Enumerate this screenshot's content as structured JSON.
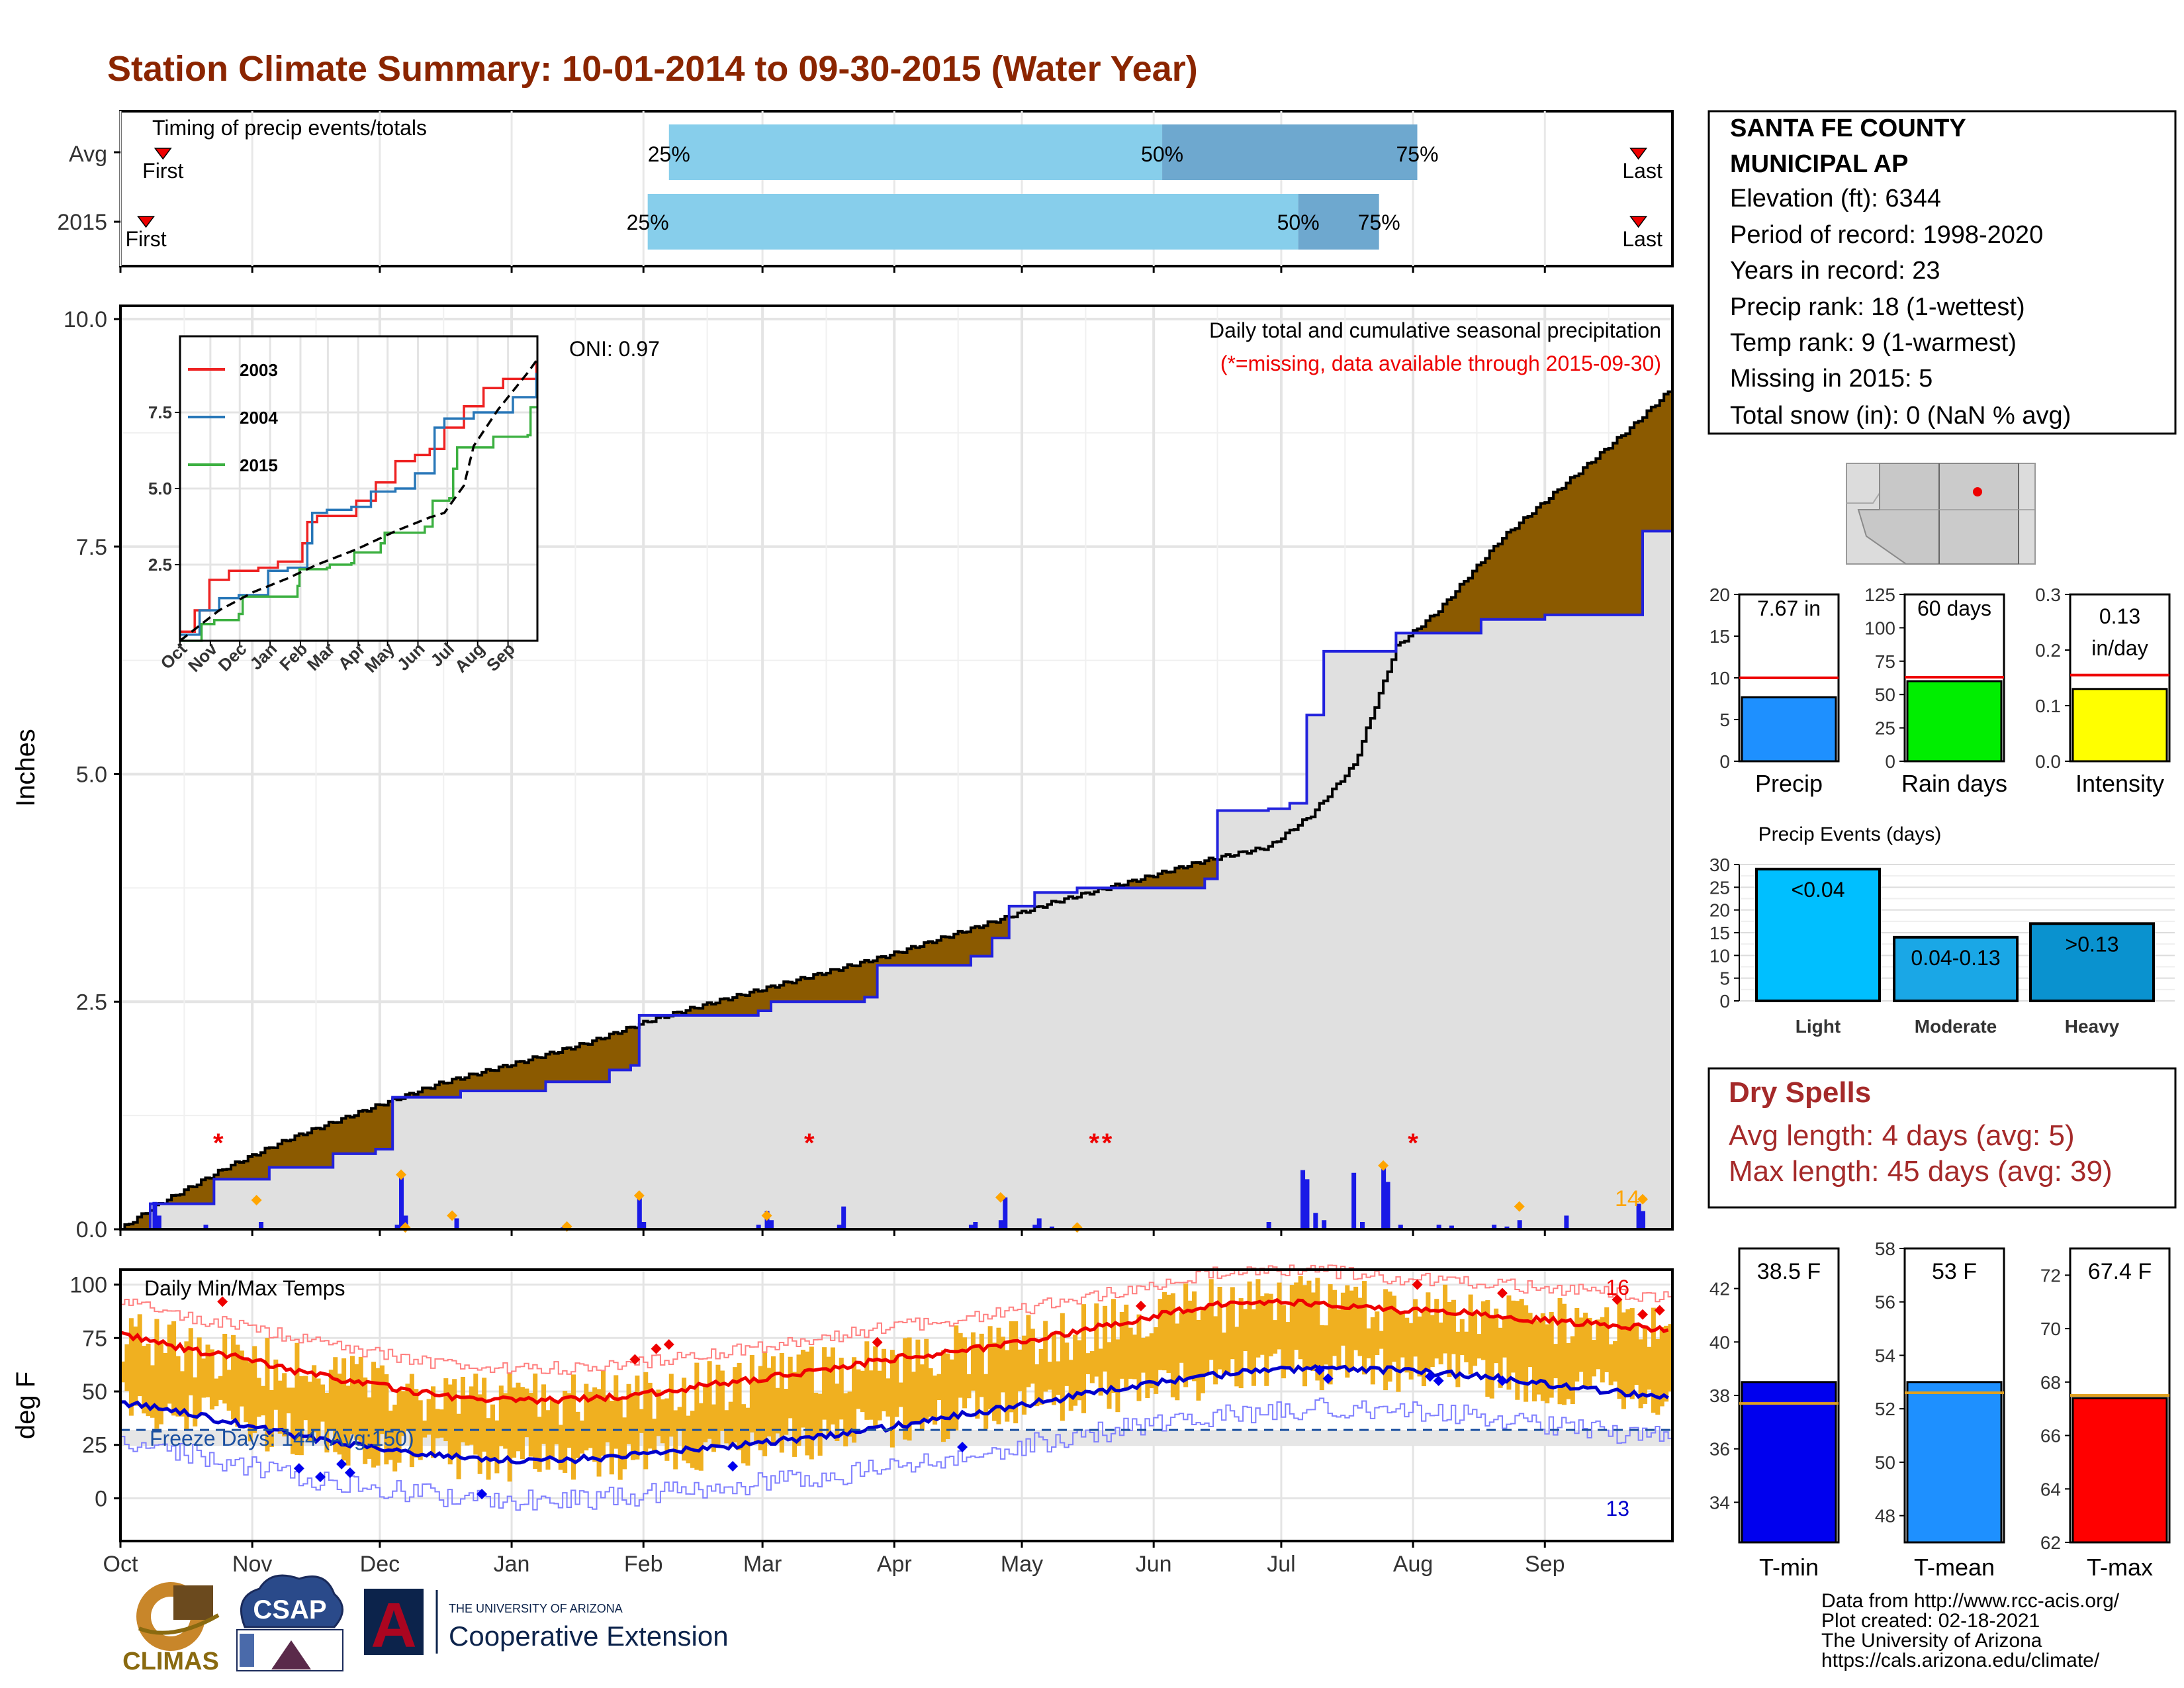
{
  "page_title": "Station Climate Summary: 10-01-2014 to 09-30-2015 (Water Year)",
  "colors": {
    "title": "#8b2500",
    "bar_q1": "#87ceeb",
    "bar_q2": "#6ea8cf",
    "brown": "#8b5a00",
    "cum_2015": "#2222dd",
    "avg_fill": "#e0e0e0",
    "tmax_line": "#ee0000",
    "tmin_line": "#0000cc",
    "temp_bar": "#f0b020",
    "precip_bar": "#1e90ff",
    "raindays_bar": "#00ee00",
    "intensity_bar": "#ffff00",
    "events_light": "#00bfff",
    "events_moderate": "#1aa7e6",
    "events_heavy": "#0a92cf",
    "dry_spell_text": "#a52a2a",
    "tmin_bar": "#0000ee",
    "tmean_bar": "#1e90ff",
    "tmax_bar": "#ff0000"
  },
  "timing": {
    "label": "Timing of precip events/totals",
    "rows": [
      {
        "name": "Avg",
        "first_label": "First",
        "last_label": "Last",
        "q25": "25%",
        "q50": "50%",
        "q75": "75%",
        "q25_day": 129,
        "q50_day": 245,
        "q75_day": 305
      },
      {
        "name": "2015",
        "first_label": "First",
        "last_label": "Last",
        "q25": "25%",
        "q50": "50%",
        "q75": "75%",
        "q25_day": 124,
        "q50_day": 277,
        "q75_day": 296
      }
    ],
    "first_day": [
      10,
      6
    ],
    "last_day": [
      357,
      357
    ]
  },
  "precip_panel": {
    "ylabel": "Inches",
    "yticks": [
      "0.0",
      "2.5",
      "5.0",
      "7.5",
      "10.0"
    ],
    "ylim": [
      0,
      10.0
    ],
    "oni": "ONI: 0.97",
    "caption": "Daily total and cumulative seasonal precipitation",
    "missing_note": "(*=missing, data available through 2015-09-30)",
    "missing_marker": "*",
    "snow_count": "14",
    "missing_days": [
      23,
      162,
      229,
      232,
      304
    ],
    "avg_cumulative": [
      [
        0,
        0
      ],
      [
        8,
        0.25
      ],
      [
        25,
        0.68
      ],
      [
        40,
        1.0
      ],
      [
        60,
        1.35
      ],
      [
        75,
        1.6
      ],
      [
        95,
        1.85
      ],
      [
        110,
        2.05
      ],
      [
        125,
        2.3
      ],
      [
        140,
        2.5
      ],
      [
        160,
        2.75
      ],
      [
        180,
        3.0
      ],
      [
        200,
        3.3
      ],
      [
        220,
        3.6
      ],
      [
        240,
        3.85
      ],
      [
        255,
        4.05
      ],
      [
        270,
        4.2
      ],
      [
        280,
        4.55
      ],
      [
        290,
        5.1
      ],
      [
        300,
        6.4
      ],
      [
        310,
        6.8
      ],
      [
        325,
        7.6
      ],
      [
        340,
        8.2
      ],
      [
        355,
        8.8
      ],
      [
        364,
        9.2
      ]
    ],
    "cum_2015": [
      [
        0,
        0
      ],
      [
        7,
        0.28
      ],
      [
        22,
        0.55
      ],
      [
        35,
        0.68
      ],
      [
        50,
        0.83
      ],
      [
        60,
        0.88
      ],
      [
        64,
        1.45
      ],
      [
        80,
        1.52
      ],
      [
        100,
        1.62
      ],
      [
        115,
        1.75
      ],
      [
        120,
        1.8
      ],
      [
        122,
        2.35
      ],
      [
        150,
        2.4
      ],
      [
        153,
        2.5
      ],
      [
        175,
        2.55
      ],
      [
        178,
        2.9
      ],
      [
        200,
        3.0
      ],
      [
        205,
        3.2
      ],
      [
        209,
        3.55
      ],
      [
        215,
        3.7
      ],
      [
        225,
        3.75
      ],
      [
        250,
        3.75
      ],
      [
        255,
        3.85
      ],
      [
        258,
        4.6
      ],
      [
        270,
        4.62
      ],
      [
        275,
        4.68
      ],
      [
        279,
        5.65
      ],
      [
        283,
        6.35
      ],
      [
        300,
        6.55
      ],
      [
        320,
        6.7
      ],
      [
        335,
        6.75
      ],
      [
        355,
        6.75
      ],
      [
        358,
        7.67
      ],
      [
        364,
        7.67
      ]
    ],
    "daily_bars": [
      [
        8,
        0.3
      ],
      [
        9,
        0.15
      ],
      [
        20,
        0.05
      ],
      [
        33,
        0.08
      ],
      [
        65,
        0.05
      ],
      [
        66,
        0.58
      ],
      [
        67,
        0.15
      ],
      [
        79,
        0.12
      ],
      [
        104,
        0.02
      ],
      [
        122,
        0.35
      ],
      [
        123,
        0.08
      ],
      [
        150,
        0.05
      ],
      [
        152,
        0.2
      ],
      [
        153,
        0.1
      ],
      [
        169,
        0.05
      ],
      [
        170,
        0.25
      ],
      [
        200,
        0.05
      ],
      [
        201,
        0.08
      ],
      [
        207,
        0.1
      ],
      [
        208,
        0.35
      ],
      [
        215,
        0.05
      ],
      [
        216,
        0.12
      ],
      [
        219,
        0.03
      ],
      [
        270,
        0.08
      ],
      [
        278,
        0.65
      ],
      [
        279,
        0.55
      ],
      [
        281,
        0.18
      ],
      [
        283,
        0.1
      ],
      [
        290,
        0.62
      ],
      [
        292,
        0.08
      ],
      [
        297,
        0.68
      ],
      [
        298,
        0.52
      ],
      [
        301,
        0.05
      ],
      [
        310,
        0.05
      ],
      [
        313,
        0.04
      ],
      [
        323,
        0.05
      ],
      [
        326,
        0.03
      ],
      [
        329,
        0.1
      ],
      [
        340,
        0.15
      ],
      [
        357,
        0.28
      ],
      [
        358,
        0.2
      ]
    ],
    "snow_markers": [
      [
        32,
        0.32
      ],
      [
        66,
        0.6
      ],
      [
        67,
        0.02
      ],
      [
        78,
        0.15
      ],
      [
        105,
        0.03
      ],
      [
        122,
        0.37
      ],
      [
        152,
        0.15
      ],
      [
        207,
        0.35
      ],
      [
        225,
        0.02
      ],
      [
        297,
        0.7
      ],
      [
        329,
        0.25
      ],
      [
        358,
        0.33
      ]
    ]
  },
  "inset": {
    "yticks": [
      "2.5",
      "5.0",
      "7.5"
    ],
    "xticks": [
      "Oct",
      "Nov",
      "Dec",
      "Jan",
      "Feb",
      "Mar",
      "Apr",
      "May",
      "Jun",
      "Jul",
      "Aug",
      "Sep"
    ],
    "legend": [
      "2003",
      "2004",
      "2015"
    ],
    "series_colors": [
      "#ee2222",
      "#2877b8",
      "#3cb041"
    ],
    "ylim": [
      0,
      10
    ],
    "series": [
      {
        "name": "2003",
        "points": [
          [
            0,
            0.3
          ],
          [
            15,
            1.0
          ],
          [
            30,
            2.0
          ],
          [
            50,
            2.3
          ],
          [
            80,
            2.4
          ],
          [
            100,
            2.6
          ],
          [
            125,
            3.2
          ],
          [
            130,
            3.9
          ],
          [
            140,
            4.1
          ],
          [
            170,
            4.1
          ],
          [
            180,
            4.6
          ],
          [
            200,
            5.2
          ],
          [
            220,
            5.9
          ],
          [
            240,
            6.1
          ],
          [
            255,
            6.3
          ],
          [
            270,
            7.0
          ],
          [
            290,
            7.7
          ],
          [
            310,
            8.3
          ],
          [
            330,
            8.6
          ],
          [
            364,
            9.2
          ]
        ]
      },
      {
        "name": "2004",
        "points": [
          [
            0,
            0.2
          ],
          [
            20,
            1.0
          ],
          [
            40,
            1.4
          ],
          [
            60,
            1.5
          ],
          [
            90,
            2.3
          ],
          [
            110,
            2.4
          ],
          [
            130,
            3.2
          ],
          [
            135,
            4.2
          ],
          [
            150,
            4.3
          ],
          [
            175,
            4.4
          ],
          [
            195,
            4.9
          ],
          [
            220,
            5.0
          ],
          [
            240,
            5.5
          ],
          [
            260,
            7.0
          ],
          [
            270,
            7.3
          ],
          [
            300,
            7.5
          ],
          [
            340,
            8.0
          ],
          [
            364,
            8.8
          ]
        ]
      },
      {
        "name": "2015",
        "points": [
          [
            0,
            0
          ],
          [
            22,
            0.55
          ],
          [
            35,
            0.68
          ],
          [
            60,
            0.88
          ],
          [
            64,
            1.45
          ],
          [
            120,
            1.8
          ],
          [
            122,
            2.35
          ],
          [
            150,
            2.4
          ],
          [
            153,
            2.5
          ],
          [
            175,
            2.55
          ],
          [
            178,
            2.9
          ],
          [
            205,
            3.2
          ],
          [
            209,
            3.55
          ],
          [
            250,
            3.75
          ],
          [
            258,
            4.6
          ],
          [
            275,
            4.68
          ],
          [
            279,
            5.65
          ],
          [
            283,
            6.35
          ],
          [
            320,
            6.7
          ],
          [
            355,
            6.75
          ],
          [
            358,
            7.67
          ],
          [
            364,
            7.67
          ]
        ]
      },
      {
        "name": "avg",
        "points": [
          [
            0,
            0
          ],
          [
            40,
            1.0
          ],
          [
            75,
            1.6
          ],
          [
            110,
            2.05
          ],
          [
            140,
            2.5
          ],
          [
            180,
            3.0
          ],
          [
            220,
            3.6
          ],
          [
            255,
            4.05
          ],
          [
            270,
            4.2
          ],
          [
            290,
            5.1
          ],
          [
            300,
            6.4
          ],
          [
            325,
            7.6
          ],
          [
            355,
            8.8
          ],
          [
            364,
            9.2
          ]
        ]
      }
    ]
  },
  "temp_panel": {
    "ylabel": "deg F",
    "yticks": [
      "0",
      "25",
      "50",
      "75",
      "100"
    ],
    "ylim": [
      -20,
      107
    ],
    "title": "Daily Min/Max Temps",
    "freeze_label": "Freeze Days: 144 (Avg:150)",
    "freeze_line": 32,
    "record_high_count": "16",
    "record_low_count": "13",
    "months": [
      "Oct",
      "Nov",
      "Dec",
      "Jan",
      "Feb",
      "Mar",
      "Apr",
      "May",
      "Jun",
      "Jul",
      "Aug",
      "Sep"
    ],
    "avg_tmax": [
      [
        0,
        77
      ],
      [
        15,
        70
      ],
      [
        30,
        65
      ],
      [
        45,
        58
      ],
      [
        60,
        53
      ],
      [
        75,
        48
      ],
      [
        90,
        46
      ],
      [
        105,
        46
      ],
      [
        120,
        48
      ],
      [
        135,
        52
      ],
      [
        150,
        56
      ],
      [
        165,
        60
      ],
      [
        180,
        65
      ],
      [
        195,
        68
      ],
      [
        210,
        73
      ],
      [
        225,
        78
      ],
      [
        240,
        84
      ],
      [
        255,
        90
      ],
      [
        270,
        92
      ],
      [
        285,
        91
      ],
      [
        300,
        88
      ],
      [
        315,
        87
      ],
      [
        330,
        84
      ],
      [
        345,
        82
      ],
      [
        364,
        79
      ]
    ],
    "avg_tmin": [
      [
        0,
        45
      ],
      [
        15,
        40
      ],
      [
        30,
        34
      ],
      [
        45,
        28
      ],
      [
        60,
        24
      ],
      [
        75,
        20
      ],
      [
        90,
        18
      ],
      [
        105,
        18
      ],
      [
        120,
        20
      ],
      [
        135,
        23
      ],
      [
        150,
        26
      ],
      [
        165,
        29
      ],
      [
        180,
        33
      ],
      [
        195,
        38
      ],
      [
        210,
        43
      ],
      [
        225,
        48
      ],
      [
        240,
        53
      ],
      [
        255,
        57
      ],
      [
        270,
        60
      ],
      [
        285,
        61
      ],
      [
        300,
        60
      ],
      [
        315,
        58
      ],
      [
        330,
        55
      ],
      [
        345,
        51
      ],
      [
        364,
        47
      ]
    ]
  },
  "station": {
    "name_line1": "SANTA FE COUNTY",
    "name_line2": "MUNICIPAL AP",
    "elevation": "Elevation (ft): 6344",
    "period": "Period of record: 1998-2020",
    "years": "Years in record: 23",
    "precip_rank": "Precip rank: 18 (1-wettest)",
    "temp_rank": "Temp rank: 9 (1-warmest)",
    "missing": "Missing in 2015: 5",
    "snow": "Total snow (in): 0 (NaN % avg)"
  },
  "summary_bars": [
    {
      "label": "Precip",
      "value_text": "7.67 in",
      "value": 7.67,
      "avg": 10.0,
      "yticks": [
        "0",
        "5",
        "10",
        "15",
        "20"
      ],
      "ymax": 20,
      "color_key": "precip_bar"
    },
    {
      "label": "Rain days",
      "value_text": "60 days",
      "value": 60,
      "avg": 63,
      "yticks": [
        "0",
        "25",
        "50",
        "75",
        "100",
        "125"
      ],
      "ymax": 125,
      "color_key": "raindays_bar"
    },
    {
      "label": "Intensity",
      "value_text": "0.13 in/day",
      "value_line1": "0.13",
      "value_line2": "in/day",
      "value": 0.13,
      "avg": 0.155,
      "yticks": [
        "0.0",
        "0.1",
        "0.2",
        "0.3"
      ],
      "ymax": 0.3,
      "color_key": "intensity_bar"
    }
  ],
  "events": {
    "title": "Precip Events (days)",
    "yticks": [
      "0",
      "5",
      "10",
      "15",
      "20",
      "25",
      "30"
    ],
    "ymax": 30,
    "bars": [
      {
        "category": "Light",
        "label": "<0.04",
        "value": 29,
        "color_key": "events_light"
      },
      {
        "category": "Moderate",
        "label": "0.04-0.13",
        "value": 14,
        "color_key": "events_moderate"
      },
      {
        "category": "Heavy",
        "label": ">0.13",
        "value": 17,
        "color_key": "events_heavy"
      }
    ]
  },
  "dry_spells": {
    "title": "Dry Spells",
    "avg": "Avg length: 4 days (avg: 5)",
    "max": "Max length: 45 days (avg: 39)"
  },
  "temp_bars": [
    {
      "label": "T-min",
      "value_text": "38.5 F",
      "value": 38.5,
      "avg": 37.7,
      "yticks": [
        "34",
        "36",
        "38",
        "40",
        "42"
      ],
      "ymin": 32.5,
      "ymax": 43.5,
      "color_key": "tmin_bar"
    },
    {
      "label": "T-mean",
      "value_text": "53 F",
      "value": 53.0,
      "avg": 52.6,
      "yticks": [
        "48",
        "50",
        "52",
        "54",
        "56",
        "58"
      ],
      "ymin": 47,
      "ymax": 58,
      "color_key": "tmean_bar"
    },
    {
      "label": "T-max",
      "value_text": "67.4 F",
      "value": 67.4,
      "avg": 67.5,
      "yticks": [
        "62",
        "64",
        "66",
        "68",
        "70",
        "72"
      ],
      "ymin": 62,
      "ymax": 73,
      "color_key": "tmax_bar"
    }
  ],
  "footer": {
    "line1": "Data from http://www.rcc-acis.org/",
    "line2": "Plot created: 02-18-2021",
    "line3": "The University of Arizona",
    "line4": "https://cals.arizona.edu/climate/",
    "ua_small": "THE UNIVERSITY OF ARIZONA",
    "ua_big": "Cooperative Extension",
    "climas": "CLIMAS",
    "csap": "CSAP",
    "ua_letter": "A"
  }
}
